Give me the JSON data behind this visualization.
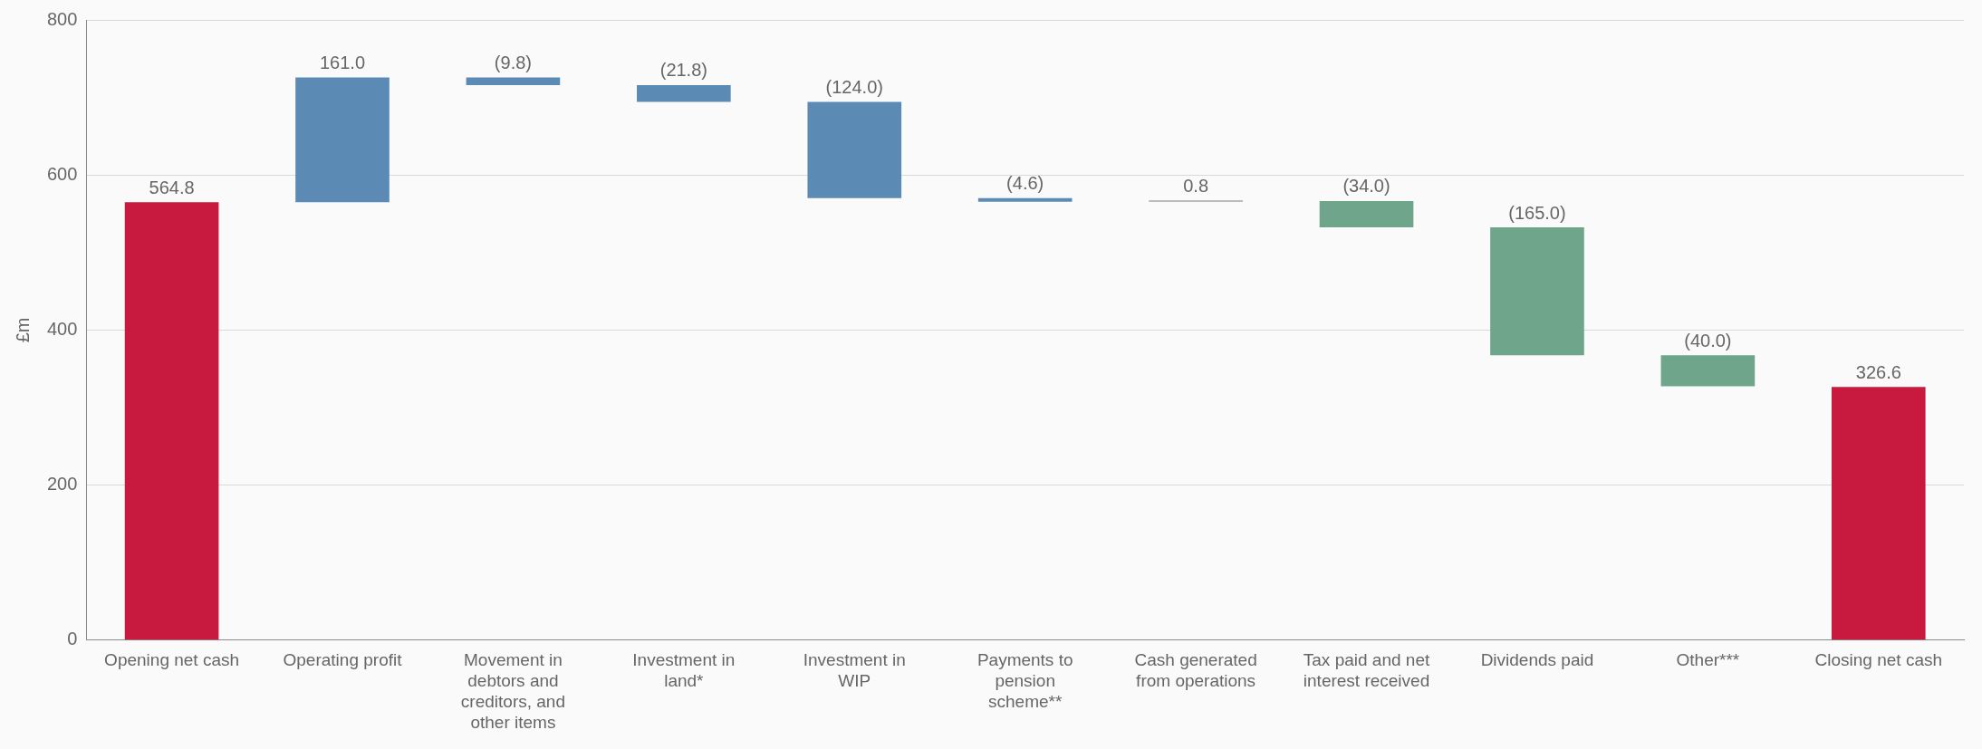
{
  "chart_data": {
    "type": "bar",
    "ylabel": "£m",
    "categories": [
      "Opening net cash",
      "Operating profit",
      "Movement in debtors and creditors, and other items",
      "Investment in land*",
      "Investment in WIP",
      "Payments to pension scheme**",
      "Cash generated from operations",
      "Tax paid and net interest received",
      "Dividends paid",
      "Other***",
      "Closing net cash"
    ],
    "values": [
      564.8,
      161.0,
      -9.8,
      -21.8,
      -124.0,
      -4.6,
      0.8,
      -34.0,
      -165.0,
      -40.0,
      326.6
    ],
    "base": [
      0,
      564.8,
      725.8,
      716.0,
      694.2,
      570.2,
      565.6,
      566.4,
      532.4,
      367.4,
      0
    ],
    "value_labels": [
      "564.8",
      "161.0",
      "(9.8)",
      "(21.8)",
      "(124.0)",
      "(4.6)",
      "0.8",
      "(34.0)",
      "(165.0)",
      "(40.0)",
      "326.6"
    ],
    "colors": [
      "#c8193f",
      "#5b8bb5",
      "#5b8bb5",
      "#5b8bb5",
      "#5b8bb5",
      "#5b8bb5",
      "#a6a6a6",
      "#6fa58a",
      "#6fa58a",
      "#6fa58a",
      "#c8193f"
    ],
    "ylim": [
      0,
      800
    ],
    "yticks": [
      0,
      200,
      400,
      600,
      800
    ],
    "grid": "y",
    "legend": false
  }
}
